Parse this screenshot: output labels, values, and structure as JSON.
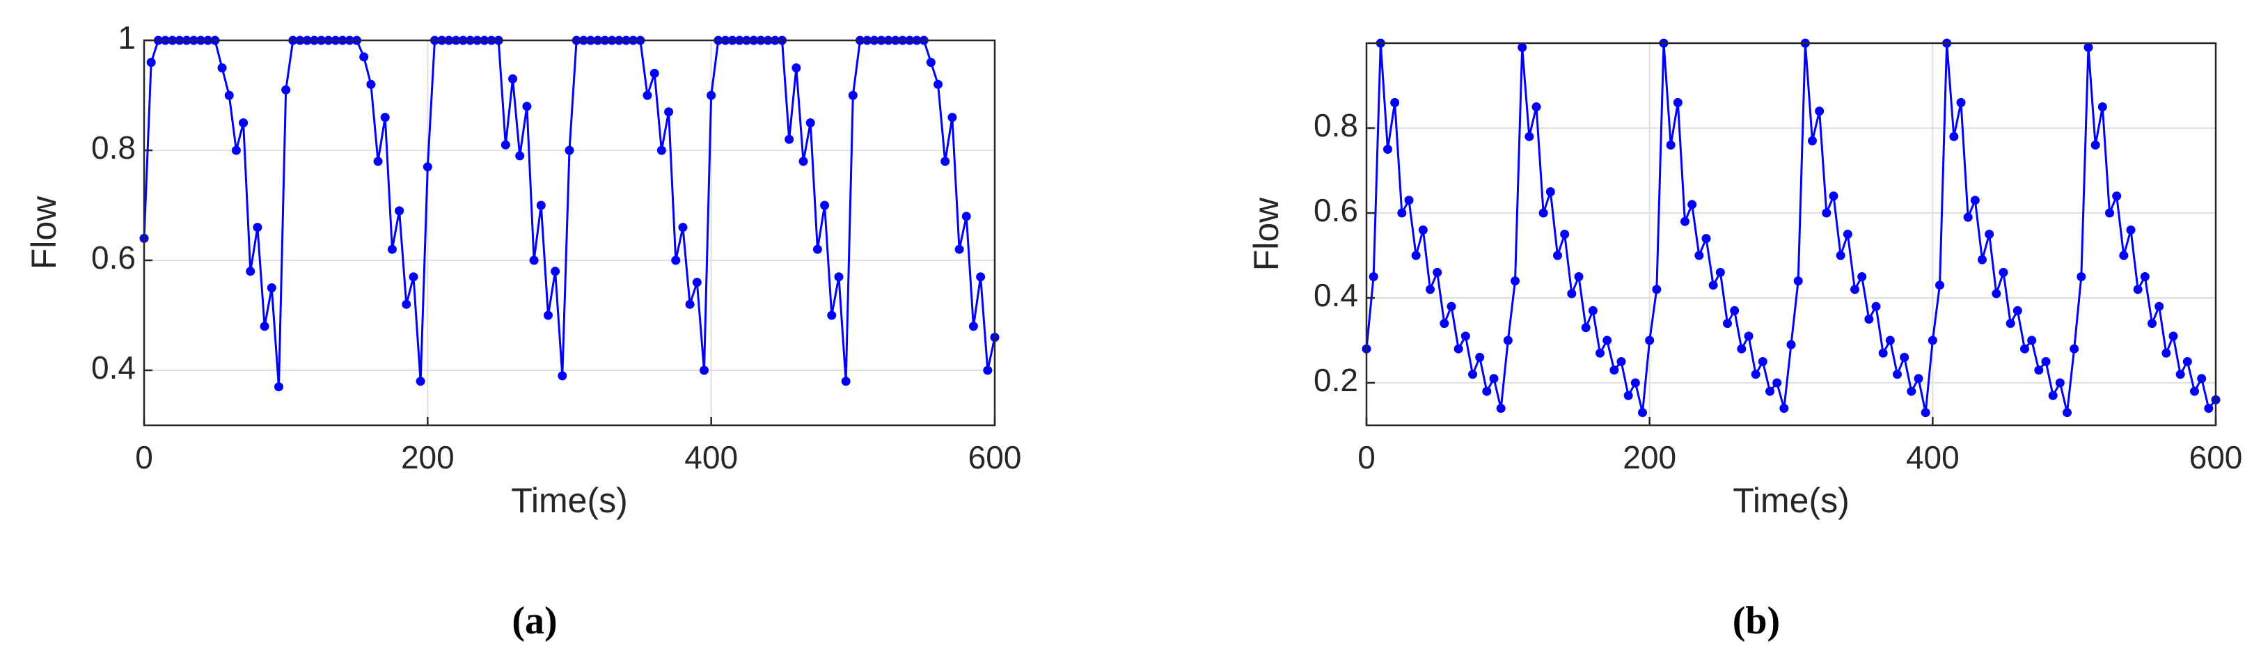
{
  "chart_data": [
    {
      "type": "line",
      "label": "(a)",
      "x_label": "Time(s)",
      "y_label": "Flow",
      "x": [
        0,
        5,
        10,
        15,
        20,
        25,
        30,
        35,
        40,
        45,
        50,
        55,
        60,
        65,
        70,
        75,
        80,
        85,
        90,
        95,
        100,
        105,
        110,
        115,
        120,
        125,
        130,
        135,
        140,
        145,
        150,
        155,
        160,
        165,
        170,
        175,
        180,
        185,
        190,
        195,
        200,
        205,
        210,
        215,
        220,
        225,
        230,
        235,
        240,
        245,
        250,
        255,
        260,
        265,
        270,
        275,
        280,
        285,
        290,
        295,
        300,
        305,
        310,
        315,
        320,
        325,
        330,
        335,
        340,
        345,
        350,
        355,
        360,
        365,
        370,
        375,
        380,
        385,
        390,
        395,
        400,
        405,
        410,
        415,
        420,
        425,
        430,
        435,
        440,
        445,
        450,
        455,
        460,
        465,
        470,
        475,
        480,
        485,
        490,
        495,
        500,
        505,
        510,
        515,
        520,
        525,
        530,
        535,
        540,
        545,
        550,
        555,
        560,
        565,
        570,
        575,
        580,
        585,
        590,
        595,
        600
      ],
      "series": [
        {
          "name": "Flow",
          "color": "#0000ff",
          "values": [
            0.64,
            0.96,
            1,
            1,
            1,
            1,
            1,
            1,
            1,
            1,
            1,
            0.95,
            0.9,
            0.8,
            0.85,
            0.58,
            0.66,
            0.48,
            0.55,
            0.37,
            0.91,
            1,
            1,
            1,
            1,
            1,
            1,
            1,
            1,
            1,
            1,
            0.97,
            0.92,
            0.78,
            0.86,
            0.62,
            0.69,
            0.52,
            0.57,
            0.38,
            0.77,
            1,
            1,
            1,
            1,
            1,
            1,
            1,
            1,
            1,
            1,
            0.81,
            0.93,
            0.79,
            0.88,
            0.6,
            0.7,
            0.5,
            0.58,
            0.39,
            0.8,
            1,
            1,
            1,
            1,
            1,
            1,
            1,
            1,
            1,
            1,
            0.9,
            0.94,
            0.8,
            0.87,
            0.6,
            0.66,
            0.52,
            0.56,
            0.4,
            0.9,
            1,
            1,
            1,
            1,
            1,
            1,
            1,
            1,
            1,
            1,
            0.82,
            0.95,
            0.78,
            0.85,
            0.62,
            0.7,
            0.5,
            0.57,
            0.38,
            0.9,
            1,
            1,
            1,
            1,
            1,
            1,
            1,
            1,
            1,
            1,
            0.96,
            0.92,
            0.78,
            0.86,
            0.62,
            0.68,
            0.48,
            0.57,
            0.4,
            0.46
          ]
        }
      ],
      "xlim": [
        0,
        600
      ],
      "xticks": [
        0,
        200,
        400,
        600
      ],
      "ylim": [
        0.3,
        1
      ],
      "yticks": [
        0.4,
        0.6,
        0.8,
        1
      ],
      "grid": true
    },
    {
      "type": "line",
      "label": "(b)",
      "x_label": "Time(s)",
      "y_label": "Flow",
      "x": [
        0,
        5,
        10,
        15,
        20,
        25,
        30,
        35,
        40,
        45,
        50,
        55,
        60,
        65,
        70,
        75,
        80,
        85,
        90,
        95,
        100,
        105,
        110,
        115,
        120,
        125,
        130,
        135,
        140,
        145,
        150,
        155,
        160,
        165,
        170,
        175,
        180,
        185,
        190,
        195,
        200,
        205,
        210,
        215,
        220,
        225,
        230,
        235,
        240,
        245,
        250,
        255,
        260,
        265,
        270,
        275,
        280,
        285,
        290,
        295,
        300,
        305,
        310,
        315,
        320,
        325,
        330,
        335,
        340,
        345,
        350,
        355,
        360,
        365,
        370,
        375,
        380,
        385,
        390,
        395,
        400,
        405,
        410,
        415,
        420,
        425,
        430,
        435,
        440,
        445,
        450,
        455,
        460,
        465,
        470,
        475,
        480,
        485,
        490,
        495,
        500,
        505,
        510,
        515,
        520,
        525,
        530,
        535,
        540,
        545,
        550,
        555,
        560,
        565,
        570,
        575,
        580,
        585,
        590,
        595,
        600
      ],
      "series": [
        {
          "name": "Flow",
          "color": "#0000ff",
          "values": [
            0.28,
            0.45,
            1,
            0.75,
            0.86,
            0.6,
            0.63,
            0.5,
            0.56,
            0.42,
            0.46,
            0.34,
            0.38,
            0.28,
            0.31,
            0.22,
            0.26,
            0.18,
            0.21,
            0.14,
            0.3,
            0.44,
            0.99,
            0.78,
            0.85,
            0.6,
            0.65,
            0.5,
            0.55,
            0.41,
            0.45,
            0.33,
            0.37,
            0.27,
            0.3,
            0.23,
            0.25,
            0.17,
            0.2,
            0.13,
            0.3,
            0.42,
            1,
            0.76,
            0.86,
            0.58,
            0.62,
            0.5,
            0.54,
            0.43,
            0.46,
            0.34,
            0.37,
            0.28,
            0.31,
            0.22,
            0.25,
            0.18,
            0.2,
            0.14,
            0.29,
            0.44,
            1,
            0.77,
            0.84,
            0.6,
            0.64,
            0.5,
            0.55,
            0.42,
            0.45,
            0.35,
            0.38,
            0.27,
            0.3,
            0.22,
            0.26,
            0.18,
            0.21,
            0.13,
            0.3,
            0.43,
            1,
            0.78,
            0.86,
            0.59,
            0.63,
            0.49,
            0.55,
            0.41,
            0.46,
            0.34,
            0.37,
            0.28,
            0.3,
            0.23,
            0.25,
            0.17,
            0.2,
            0.13,
            0.28,
            0.45,
            0.99,
            0.76,
            0.85,
            0.6,
            0.64,
            0.5,
            0.56,
            0.42,
            0.45,
            0.34,
            0.38,
            0.27,
            0.31,
            0.22,
            0.25,
            0.18,
            0.21,
            0.14,
            0.16
          ]
        }
      ],
      "xlim": [
        0,
        600
      ],
      "xticks": [
        0,
        200,
        400,
        600
      ],
      "ylim": [
        0.1,
        1
      ],
      "yticks": [
        0.2,
        0.4,
        0.6,
        0.8
      ],
      "grid": true
    }
  ]
}
